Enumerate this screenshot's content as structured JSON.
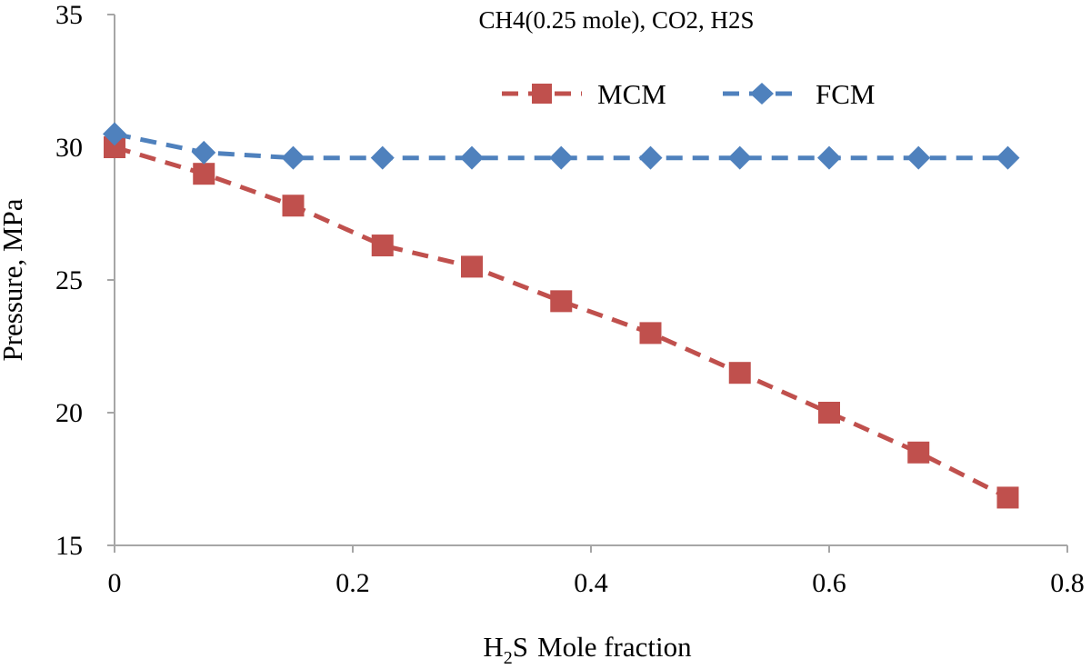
{
  "chart_data": {
    "type": "line",
    "title": "CH4(0.25  mole), CO2, H2S",
    "xlabel": "Mole fraction",
    "xlabel_prefix": "H",
    "xlabel_subscript": "2",
    "xlabel_suffix": "S",
    "ylabel": "Pressure, MPa",
    "xlim": [
      0,
      0.8
    ],
    "ylim": [
      15,
      35
    ],
    "x_ticks": [
      0,
      0.2,
      0.4,
      0.6,
      0.8
    ],
    "x_tick_labels": [
      "0",
      "0.2",
      "0.4",
      "0.6",
      "0.8"
    ],
    "y_ticks": [
      15,
      20,
      25,
      30,
      35
    ],
    "y_tick_labels": [
      "15",
      "20",
      "25",
      "30",
      "35"
    ],
    "grid": false,
    "legend_position": "top-right",
    "series": [
      {
        "name": "MCM",
        "color": "#c0504d",
        "marker": "square",
        "line_style": "dashed",
        "x": [
          0,
          0.075,
          0.15,
          0.225,
          0.3,
          0.375,
          0.45,
          0.525,
          0.6,
          0.675,
          0.75
        ],
        "values": [
          30.0,
          29.0,
          27.8,
          26.3,
          25.5,
          24.2,
          23.0,
          21.5,
          20.0,
          18.5,
          16.8
        ]
      },
      {
        "name": "FCM",
        "color": "#4f81bd",
        "marker": "diamond",
        "line_style": "dashed",
        "x": [
          0,
          0.075,
          0.15,
          0.225,
          0.3,
          0.375,
          0.45,
          0.525,
          0.6,
          0.675,
          0.75
        ],
        "values": [
          30.5,
          29.8,
          29.6,
          29.6,
          29.6,
          29.6,
          29.6,
          29.6,
          29.6,
          29.6,
          29.6
        ]
      }
    ]
  }
}
